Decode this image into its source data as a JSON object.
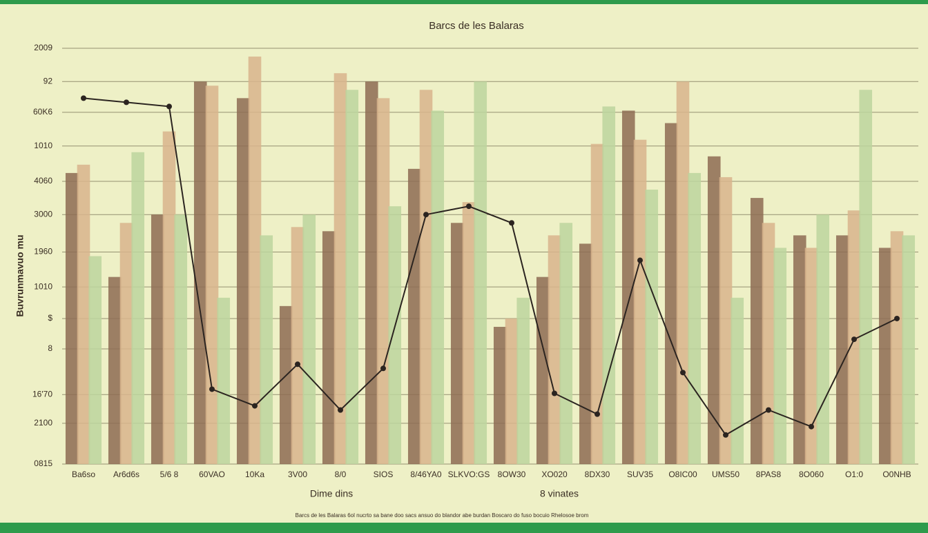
{
  "chart_data": {
    "type": "bar",
    "title": "Barcs de les Balaras",
    "x_label_left": "Dime dins",
    "x_label_right": "8 vinates",
    "y_label": "Buvrunmavuo mu",
    "footer": "Barcs de les Balaras 6ol nucrto sa bane doo sacs ansuo do blandor abe burdan Boscaro do fuso bocuio Rhelosoe brom",
    "categories": [
      "Ba6so",
      "Ar6d6s",
      "5/6 8",
      "60VAO",
      "10Ka",
      "3V00",
      "8/0",
      "SIOS",
      "8/46YA0",
      "SLKVO:GS",
      "8OW30",
      "XO020",
      "8DX30",
      "SUV35",
      "O8IC00",
      "UMS50",
      "8PAS8",
      "8O060",
      "O1:0",
      "O0NHB"
    ],
    "series": [
      {
        "color": "#8d6b52",
        "values": [
          70,
          45,
          60,
          92,
          88,
          38,
          56,
          92,
          71,
          58,
          33,
          45,
          53,
          85,
          82,
          74,
          64,
          55,
          55,
          52
        ]
      },
      {
        "color": "#d8b48c",
        "values": [
          72,
          58,
          80,
          91,
          98,
          57,
          94,
          88,
          90,
          63,
          35,
          55,
          77,
          78,
          92,
          69,
          58,
          52,
          61,
          56
        ]
      },
      {
        "color": "#bcd59e",
        "values": [
          50,
          75,
          60,
          40,
          55,
          60,
          90,
          62,
          85,
          92,
          40,
          58,
          86,
          66,
          70,
          40,
          52,
          60,
          90,
          55
        ]
      },
      {
        "type": "line",
        "color": "#2b2420",
        "values": [
          88,
          87,
          86,
          18,
          14,
          24,
          13,
          23,
          60,
          62,
          58,
          17,
          12,
          49,
          22,
          7,
          13,
          9,
          30,
          35
        ]
      }
    ],
    "ylim": [
      0,
      100
    ],
    "yticks": [
      {
        "value": 0,
        "label": "0815"
      },
      {
        "value": 9.8,
        "label": "2100"
      },
      {
        "value": 16.7,
        "label": "16'70"
      },
      {
        "value": 27.7,
        "label": "8"
      },
      {
        "value": 35,
        "label": "$"
      },
      {
        "value": 42.6,
        "label": "1010"
      },
      {
        "value": 51,
        "label": "1960"
      },
      {
        "value": 60,
        "label": "3000"
      },
      {
        "value": 68,
        "label": "4060"
      },
      {
        "value": 76.5,
        "label": "1010"
      },
      {
        "value": 84.6,
        "label": "60K6"
      },
      92,
      {
        "value": 100,
        "label": "2009"
      }
    ],
    "grid": true
  }
}
